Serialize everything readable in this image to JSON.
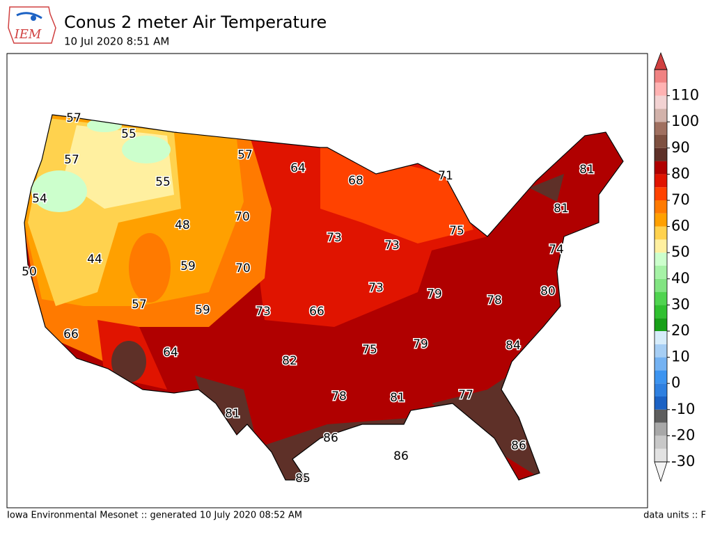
{
  "header": {
    "logo": "IEM",
    "title": "Conus 2 meter Air Temperature",
    "subtitle": "10 Jul 2020 8:51 AM"
  },
  "footer": {
    "left": "Iowa Environmental Mesonet :: generated 10 July 2020 08:52 AM",
    "right": "data units :: F"
  },
  "contour_labels": [
    57,
    55,
    57,
    55,
    54,
    48,
    57,
    64,
    68,
    71,
    81,
    81,
    75,
    73,
    73,
    70,
    59,
    70,
    44,
    50,
    74,
    80,
    79,
    78,
    73,
    66,
    73,
    59,
    57,
    66,
    64,
    82,
    75,
    79,
    84,
    78,
    81,
    77,
    81,
    86,
    86,
    86,
    85
  ],
  "colorbar": {
    "levels": [
      -30,
      -25,
      -20,
      -15,
      -10,
      -5,
      0,
      5,
      10,
      15,
      20,
      25,
      30,
      35,
      40,
      45,
      50,
      55,
      60,
      65,
      70,
      75,
      80,
      85,
      90,
      95,
      100,
      105,
      110,
      115,
      120
    ],
    "colors": [
      "#e2e2e2",
      "#c8c8c8",
      "#a8a8a8",
      "#5e5e5e",
      "#1c62c4",
      "#2f80e0",
      "#3c94f0",
      "#74b2f2",
      "#a6cef4",
      "#d6ecfa",
      "#18a018",
      "#30c030",
      "#50d450",
      "#82e482",
      "#a6f2a6",
      "#ccffcc",
      "#fff0a0",
      "#ffd24e",
      "#ffa000",
      "#ff7a00",
      "#ff4200",
      "#e01400",
      "#b00000",
      "#5e3028",
      "#7e5040",
      "#a07060",
      "#d2b2aa",
      "#f2d2d2",
      "#ffb2b2",
      "#f08282"
    ],
    "under_color": "#f4f4f4",
    "over_color": "#d04040",
    "ticks": [
      -30,
      -20,
      -10,
      0,
      10,
      20,
      30,
      40,
      50,
      60,
      70,
      80,
      90,
      100,
      110
    ]
  }
}
